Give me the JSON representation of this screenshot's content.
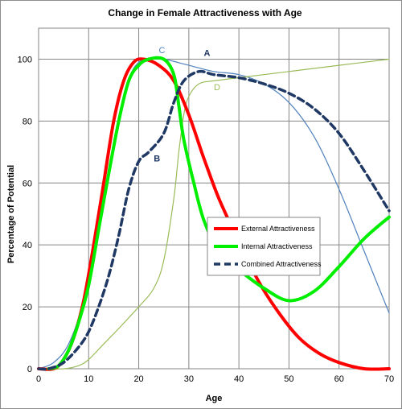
{
  "chart_data": {
    "type": "line",
    "title": "Change in Female Attractiveness with Age",
    "xlabel": "Age",
    "ylabel": "Percentage of Potential",
    "xlim": [
      0,
      70
    ],
    "ylim": [
      0,
      110
    ],
    "x_ticks": [
      0,
      10,
      20,
      30,
      40,
      50,
      60,
      70
    ],
    "y_ticks": [
      0,
      20,
      40,
      60,
      80,
      100
    ],
    "grid": true,
    "legend_position": "center-right",
    "series": [
      {
        "key": "A",
        "color": "#4f81bd",
        "style": "thin",
        "points": [
          [
            0,
            0
          ],
          [
            3,
            2
          ],
          [
            6,
            8
          ],
          [
            9,
            22
          ],
          [
            12,
            45
          ],
          [
            15,
            72
          ],
          [
            18,
            93
          ],
          [
            20,
            99
          ],
          [
            22,
            100
          ],
          [
            25,
            100
          ],
          [
            30,
            98
          ],
          [
            35,
            96
          ],
          [
            40,
            95
          ],
          [
            45,
            92
          ],
          [
            50,
            86
          ],
          [
            55,
            75
          ],
          [
            60,
            58
          ],
          [
            65,
            38
          ],
          [
            70,
            18
          ]
        ]
      },
      {
        "key": "D",
        "color": "#9bbb59",
        "style": "thin",
        "points": [
          [
            0,
            0
          ],
          [
            5,
            0
          ],
          [
            8,
            1
          ],
          [
            10,
            3
          ],
          [
            13,
            8
          ],
          [
            16,
            13
          ],
          [
            20,
            20
          ],
          [
            23,
            26
          ],
          [
            25,
            35
          ],
          [
            27,
            55
          ],
          [
            28,
            70
          ],
          [
            29,
            82
          ],
          [
            30,
            88
          ],
          [
            32,
            92
          ],
          [
            35,
            93
          ],
          [
            40,
            94
          ],
          [
            50,
            96
          ],
          [
            60,
            98
          ],
          [
            70,
            100
          ]
        ]
      },
      {
        "name": "External Attractiveness",
        "color": "#ff0000",
        "style": "thick",
        "points": [
          [
            0,
            0
          ],
          [
            3,
            0
          ],
          [
            5,
            3
          ],
          [
            7,
            10
          ],
          [
            9,
            22
          ],
          [
            11,
            40
          ],
          [
            13,
            60
          ],
          [
            15,
            80
          ],
          [
            17,
            93
          ],
          [
            19,
            99
          ],
          [
            21,
            100
          ],
          [
            24,
            98
          ],
          [
            27,
            93
          ],
          [
            30,
            82
          ],
          [
            33,
            68
          ],
          [
            36,
            55
          ],
          [
            40,
            41
          ],
          [
            44,
            28
          ],
          [
            48,
            18
          ],
          [
            52,
            10
          ],
          [
            56,
            5
          ],
          [
            60,
            2
          ],
          [
            65,
            0
          ],
          [
            70,
            0
          ]
        ]
      },
      {
        "name": "Internal Attractiveness",
        "color": "#00ee00",
        "style": "thick",
        "points": [
          [
            2,
            0
          ],
          [
            4,
            1
          ],
          [
            6,
            6
          ],
          [
            8,
            15
          ],
          [
            10,
            27
          ],
          [
            12,
            45
          ],
          [
            14,
            63
          ],
          [
            16,
            80
          ],
          [
            18,
            93
          ],
          [
            20,
            98
          ],
          [
            22,
            100
          ],
          [
            25,
            100
          ],
          [
            27,
            95
          ],
          [
            28,
            85
          ],
          [
            29,
            74
          ],
          [
            31,
            60
          ],
          [
            33,
            48
          ],
          [
            36,
            38
          ],
          [
            40,
            32
          ],
          [
            45,
            26
          ],
          [
            50,
            22
          ],
          [
            55,
            25
          ],
          [
            60,
            33
          ],
          [
            65,
            42
          ],
          [
            70,
            49
          ]
        ]
      },
      {
        "name": "Combined Attractiveness",
        "color": "#1f3864",
        "style": "dashed",
        "points": [
          [
            0,
            0
          ],
          [
            2,
            0
          ],
          [
            5,
            2
          ],
          [
            8,
            7
          ],
          [
            10,
            12
          ],
          [
            12,
            20
          ],
          [
            14,
            30
          ],
          [
            16,
            43
          ],
          [
            18,
            58
          ],
          [
            20,
            67
          ],
          [
            22,
            70
          ],
          [
            25,
            76
          ],
          [
            27,
            86
          ],
          [
            29,
            93
          ],
          [
            32,
            96
          ],
          [
            35,
            95
          ],
          [
            40,
            94
          ],
          [
            45,
            92
          ],
          [
            50,
            89
          ],
          [
            55,
            84
          ],
          [
            60,
            76
          ],
          [
            65,
            64
          ],
          [
            70,
            51
          ]
        ]
      }
    ],
    "annotations": [
      {
        "text": "A",
        "color": "#1f3864",
        "x": 33,
        "y": 101
      },
      {
        "text": "B",
        "color": "#1f3864",
        "x": 23,
        "y": 67
      },
      {
        "text": "C",
        "color": "#4f81bd",
        "x": 24,
        "y": 102
      },
      {
        "text": "D",
        "color": "#9bbb59",
        "x": 35,
        "y": 90
      }
    ]
  }
}
